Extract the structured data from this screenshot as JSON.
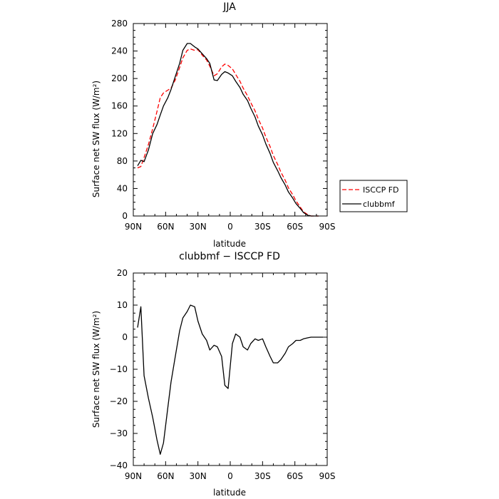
{
  "chart_data": [
    {
      "type": "line",
      "title": "JJA",
      "xlabel": "latitude",
      "ylabel": "Surface net SW flux (W/m²)",
      "xlim": [
        90,
        -90
      ],
      "ylim": [
        0,
        280
      ],
      "x_ticks": [
        90,
        60,
        30,
        0,
        -30,
        -60,
        -90
      ],
      "x_tick_labels": [
        "90N",
        "60N",
        "30N",
        "0",
        "30S",
        "60S",
        "90S"
      ],
      "y_ticks": [
        0,
        40,
        80,
        120,
        160,
        200,
        240,
        280
      ],
      "y_tick_labels": [
        "0",
        "40",
        "80",
        "120",
        "160",
        "200",
        "240",
        "280"
      ],
      "legend": {
        "placement": "outside-right",
        "entries": [
          "ISCCP FD",
          "clubbmf"
        ]
      },
      "series": [
        {
          "name": "ISCCP FD",
          "color": "#ff0000",
          "style": "dashed",
          "points": [
            [
              86,
              70
            ],
            [
              83,
              72
            ],
            [
              80,
              85
            ],
            [
              76,
              104
            ],
            [
              72,
              127
            ],
            [
              68,
              152
            ],
            [
              65,
              172
            ],
            [
              62,
              179
            ],
            [
              58,
              183
            ],
            [
              55,
              186
            ],
            [
              51,
              198
            ],
            [
              47,
              216
            ],
            [
              44,
              230
            ],
            [
              40,
              241
            ],
            [
              37,
              243
            ],
            [
              33,
              241
            ],
            [
              30,
              242
            ],
            [
              26,
              234
            ],
            [
              22,
              227
            ],
            [
              19,
              218
            ],
            [
              15,
              204
            ],
            [
              12,
              207
            ],
            [
              8,
              217
            ],
            [
              5,
              221
            ],
            [
              2,
              219
            ],
            [
              -2,
              214
            ],
            [
              -5,
              206
            ],
            [
              -9,
              196
            ],
            [
              -12,
              186
            ],
            [
              -16,
              175
            ],
            [
              -19,
              165
            ],
            [
              -23,
              153
            ],
            [
              -26,
              141
            ],
            [
              -30,
              128
            ],
            [
              -33,
              115
            ],
            [
              -37,
              101
            ],
            [
              -40,
              88
            ],
            [
              -44,
              75
            ],
            [
              -47,
              64
            ],
            [
              -51,
              52
            ],
            [
              -54,
              41
            ],
            [
              -58,
              31
            ],
            [
              -61,
              22
            ],
            [
              -65,
              13
            ],
            [
              -68,
              6
            ],
            [
              -72,
              2
            ],
            [
              -75,
              0
            ],
            [
              -79,
              0
            ],
            [
              -82,
              0
            ]
          ]
        },
        {
          "name": "clubbmf",
          "color": "#000000",
          "style": "solid",
          "points": [
            [
              86,
              73
            ],
            [
              83,
              81
            ],
            [
              80,
              79
            ],
            [
              76,
              96
            ],
            [
              72,
              120
            ],
            [
              68,
              133
            ],
            [
              65,
              147
            ],
            [
              62,
              160
            ],
            [
              58,
              172
            ],
            [
              55,
              184
            ],
            [
              51,
              203
            ],
            [
              47,
              222
            ],
            [
              44,
              241
            ],
            [
              40,
              251
            ],
            [
              37,
              251
            ],
            [
              33,
              246
            ],
            [
              30,
              243
            ],
            [
              26,
              236
            ],
            [
              22,
              229
            ],
            [
              19,
              222
            ],
            [
              15,
              198
            ],
            [
              12,
              197
            ],
            [
              8,
              206
            ],
            [
              5,
              210
            ],
            [
              2,
              208
            ],
            [
              -2,
              204
            ],
            [
              -5,
              196
            ],
            [
              -9,
              187
            ],
            [
              -12,
              177
            ],
            [
              -16,
              168
            ],
            [
              -19,
              157
            ],
            [
              -23,
              144
            ],
            [
              -26,
              131
            ],
            [
              -30,
              118
            ],
            [
              -33,
              105
            ],
            [
              -37,
              91
            ],
            [
              -40,
              78
            ],
            [
              -44,
              66
            ],
            [
              -47,
              56
            ],
            [
              -51,
              45
            ],
            [
              -54,
              35
            ],
            [
              -58,
              26
            ],
            [
              -61,
              18
            ],
            [
              -65,
              11
            ],
            [
              -68,
              5
            ],
            [
              -72,
              1
            ],
            [
              -75,
              0
            ],
            [
              -79,
              0
            ],
            [
              -82,
              0
            ]
          ]
        }
      ]
    },
    {
      "type": "line",
      "title": "clubbmf − ISCCP FD",
      "xlabel": "latitude",
      "ylabel": "Surface net SW flux (W/m²)",
      "xlim": [
        90,
        -90
      ],
      "ylim": [
        -40,
        20
      ],
      "x_ticks": [
        90,
        60,
        30,
        0,
        -30,
        -60,
        -90
      ],
      "x_tick_labels": [
        "90N",
        "60N",
        "30N",
        "0",
        "30S",
        "60S",
        "90S"
      ],
      "y_ticks": [
        -40,
        -30,
        -20,
        -10,
        0,
        10,
        20
      ],
      "y_tick_labels": [
        "−40",
        "−30",
        "−20",
        "−10",
        "0",
        "10",
        "20"
      ],
      "series": [
        {
          "color": "#000000",
          "style": "solid",
          "points": [
            [
              86,
              3
            ],
            [
              83,
              9.5
            ],
            [
              80,
              -12
            ],
            [
              76,
              -19
            ],
            [
              72,
              -25
            ],
            [
              68,
              -32
            ],
            [
              65,
              -36.5
            ],
            [
              62,
              -33
            ],
            [
              58,
              -22
            ],
            [
              55,
              -14
            ],
            [
              51,
              -6
            ],
            [
              47,
              2
            ],
            [
              44,
              6
            ],
            [
              40,
              8
            ],
            [
              37,
              10
            ],
            [
              33,
              9.5
            ],
            [
              30,
              5
            ],
            [
              26,
              1
            ],
            [
              22,
              -1
            ],
            [
              19,
              -4
            ],
            [
              15,
              -2.5
            ],
            [
              12,
              -3
            ],
            [
              8,
              -6
            ],
            [
              5,
              -15
            ],
            [
              2,
              -16
            ],
            [
              -2,
              -2
            ],
            [
              -5,
              1
            ],
            [
              -9,
              0
            ],
            [
              -12,
              -3
            ],
            [
              -16,
              -4
            ],
            [
              -19,
              -2
            ],
            [
              -23,
              -0.5
            ],
            [
              -26,
              -1
            ],
            [
              -30,
              -0.5
            ],
            [
              -33,
              -3
            ],
            [
              -37,
              -6
            ],
            [
              -40,
              -8
            ],
            [
              -44,
              -8
            ],
            [
              -47,
              -7
            ],
            [
              -51,
              -5
            ],
            [
              -54,
              -3
            ],
            [
              -58,
              -2
            ],
            [
              -61,
              -1
            ],
            [
              -65,
              -1
            ],
            [
              -68,
              -0.5
            ],
            [
              -72,
              -0.2
            ],
            [
              -75,
              0
            ],
            [
              -79,
              0
            ],
            [
              -82,
              0
            ],
            [
              -86,
              0
            ]
          ]
        }
      ]
    }
  ]
}
